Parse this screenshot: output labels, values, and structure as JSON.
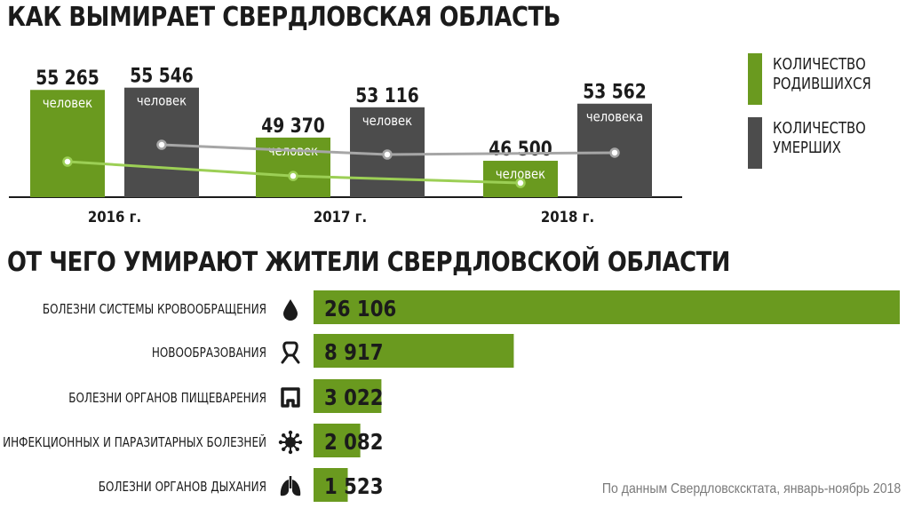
{
  "title_top": "КАК ВЫМИРАЕТ СВЕРДЛОВСКАЯ ОБЛАСТЬ",
  "title_bottom": "ОТ ЧЕГО УМИРАЮТ ЖИТЕЛИ СВЕРДЛОВСКОЙ ОБЛАСТИ",
  "colors": {
    "born": "#6a9a1f",
    "died": "#4c4c4c",
    "born_line": "#9ccf55",
    "died_line": "#a6a6a6",
    "causes_bar": "#6a9a1f"
  },
  "legend": [
    {
      "label_line1": "КОЛИЧЕСТВО",
      "label_line2": "РОДИВШИХСЯ"
    },
    {
      "label_line1": "КОЛИЧЕСТВО",
      "label_line2": "УМЕРШИХ"
    }
  ],
  "source": "По данным Свердловсксктата, январь-ноябрь 2018",
  "chart_data": [
    {
      "type": "bar",
      "title": "КАК ВЫМИРАЕТ СВЕРДЛОВСКАЯ ОБЛАСТЬ",
      "categories": [
        "2016 г.",
        "2017 г.",
        "2018 г."
      ],
      "series": [
        {
          "name": "КОЛИЧЕСТВО РОДИВШИХСЯ",
          "values": [
            55265,
            49370,
            46500
          ],
          "value_labels": [
            "55 265",
            "49 370",
            "46 500"
          ],
          "unit_labels": [
            "человек",
            "человек",
            "человек"
          ]
        },
        {
          "name": "КОЛИЧЕСТВО УМЕРШИХ",
          "values": [
            55546,
            53116,
            53562
          ],
          "value_labels": [
            "55 546",
            "53 116",
            "53 562"
          ],
          "unit_labels": [
            "человек",
            "человек",
            "человека"
          ]
        }
      ],
      "trend_lines": true,
      "legend_position": "right"
    },
    {
      "type": "bar",
      "orientation": "horizontal",
      "title": "ОТ ЧЕГО УМИРАЮТ ЖИТЕЛИ СВЕРДЛОВСКОЙ ОБЛАСТИ",
      "categories": [
        "БОЛЕЗНИ СИСТЕМЫ КРОВООБРАЩЕНИЯ",
        "НОВООБРАЗОВАНИЯ",
        "БОЛЕЗНИ ОРГАНОВ ПИЩЕВАРЕНИЯ",
        "ИНФЕКЦИОННЫХ И ПАРАЗИТАРНЫХ БОЛЕЗНЕЙ",
        "БОЛЕЗНИ ОРГАНОВ ДЫХАНИЯ"
      ],
      "values": [
        26106,
        8917,
        3022,
        2082,
        1523
      ],
      "value_labels": [
        "26 106",
        "8 917",
        "3 022",
        "2 082",
        "1 523"
      ],
      "icons": [
        "blood-drop-icon",
        "cancer-ribbon-icon",
        "intestine-icon",
        "virus-icon",
        "lungs-icon"
      ]
    }
  ]
}
